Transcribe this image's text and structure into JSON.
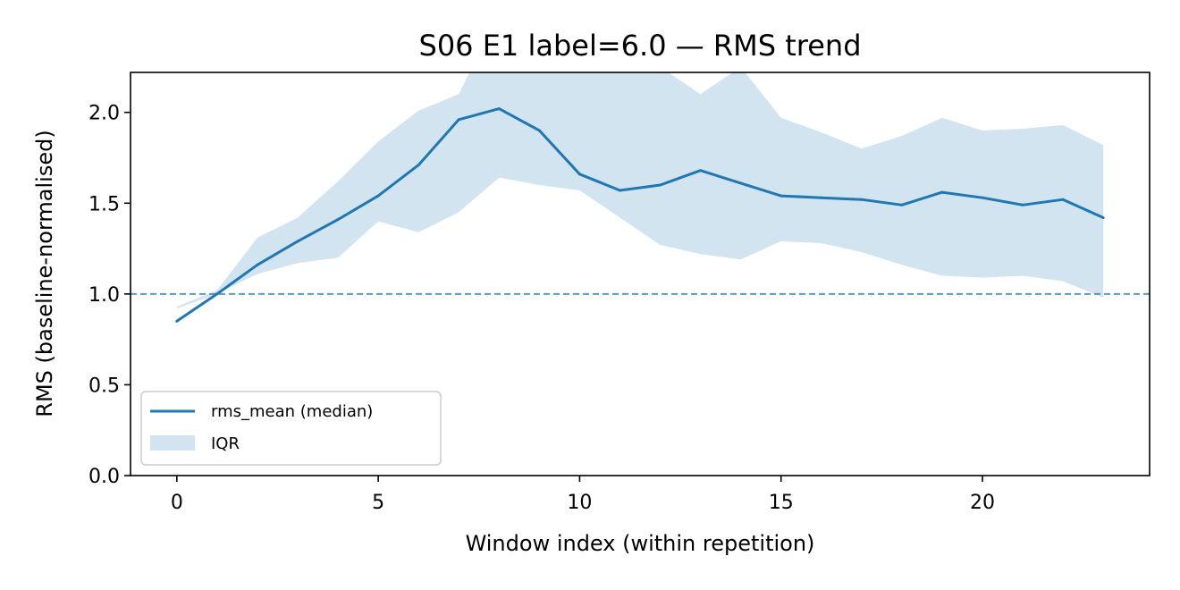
{
  "chart_data": {
    "type": "line",
    "title": "S06 E1 label=6.0 — RMS trend",
    "xlabel": "Window index (within repetition)",
    "ylabel": "RMS (baseline-normalised)",
    "xlim": [
      -1.15,
      24.15
    ],
    "ylim": [
      0.0,
      2.22
    ],
    "xticks": [
      0,
      5,
      10,
      15,
      20
    ],
    "yticks": [
      0.0,
      0.5,
      1.0,
      1.5,
      2.0
    ],
    "x": [
      0,
      1,
      2,
      3,
      4,
      5,
      6,
      7,
      8,
      9,
      10,
      11,
      12,
      13,
      14,
      15,
      16,
      17,
      18,
      19,
      20,
      21,
      22,
      23
    ],
    "series": [
      {
        "name": "rms_mean (median)",
        "kind": "line",
        "color": "#1f77b4",
        "values": [
          0.85,
          1.0,
          1.16,
          1.29,
          1.41,
          1.54,
          1.71,
          1.96,
          2.02,
          1.9,
          1.66,
          1.57,
          1.6,
          1.68,
          1.61,
          1.54,
          1.53,
          1.52,
          1.49,
          1.56,
          1.53,
          1.49,
          1.52,
          1.42
        ]
      },
      {
        "name": "IQR",
        "kind": "band",
        "color": "#1f77b4",
        "opacity": 0.2,
        "lower": [
          0.92,
          1.0,
          1.11,
          1.17,
          1.2,
          1.4,
          1.34,
          1.45,
          1.64,
          1.6,
          1.57,
          1.42,
          1.27,
          1.22,
          1.19,
          1.29,
          1.28,
          1.23,
          1.16,
          1.1,
          1.09,
          1.1,
          1.07,
          0.98
        ],
        "upper": [
          0.93,
          1.02,
          1.31,
          1.42,
          1.62,
          1.84,
          2.01,
          2.1,
          2.55,
          2.48,
          2.45,
          2.4,
          2.25,
          2.1,
          2.25,
          1.97,
          1.89,
          1.8,
          1.87,
          1.97,
          1.9,
          1.91,
          1.93,
          1.82
        ]
      }
    ],
    "reference_line": {
      "y": 1.0,
      "style": "dashed",
      "color": "#1f77b4"
    },
    "grid": false,
    "legend": {
      "placement": "lower-left"
    }
  }
}
